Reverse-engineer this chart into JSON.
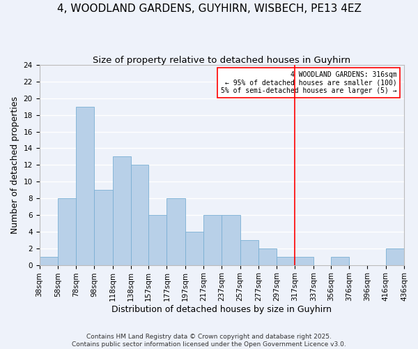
{
  "title": "4, WOODLAND GARDENS, GUYHIRN, WISBECH, PE13 4EZ",
  "subtitle": "Size of property relative to detached houses in Guyhirn",
  "xlabel": "Distribution of detached houses by size in Guyhirn",
  "ylabel": "Number of detached properties",
  "bar_heights": [
    1,
    8,
    19,
    9,
    13,
    12,
    6,
    8,
    4,
    6,
    6,
    3,
    2,
    1,
    1,
    0,
    1,
    0,
    0,
    2
  ],
  "bin_edges": [
    38,
    58,
    78,
    98,
    118,
    138,
    157,
    177,
    197,
    217,
    237,
    257,
    277,
    297,
    317,
    337,
    356,
    376,
    396,
    416,
    436
  ],
  "bar_color": "#b8d0e8",
  "bar_edge_color": "#7aafd4",
  "ylim": [
    0,
    24
  ],
  "yticks": [
    0,
    2,
    4,
    6,
    8,
    10,
    12,
    14,
    16,
    18,
    20,
    22,
    24
  ],
  "red_line_x": 317,
  "legend_box_text_line1": "4 WOODLAND GARDENS: 316sqm",
  "legend_box_text_line2": "← 95% of detached houses are smaller (100)",
  "legend_box_text_line3": "5% of semi-detached houses are larger (5) →",
  "footer_lines": [
    "Contains HM Land Registry data © Crown copyright and database right 2025.",
    "Contains public sector information licensed under the Open Government Licence v3.0."
  ],
  "background_color": "#eef2fa",
  "grid_color": "#ffffff",
  "title_fontsize": 11,
  "subtitle_fontsize": 9.5,
  "axis_label_fontsize": 9,
  "tick_fontsize": 7.5,
  "footer_fontsize": 6.5
}
